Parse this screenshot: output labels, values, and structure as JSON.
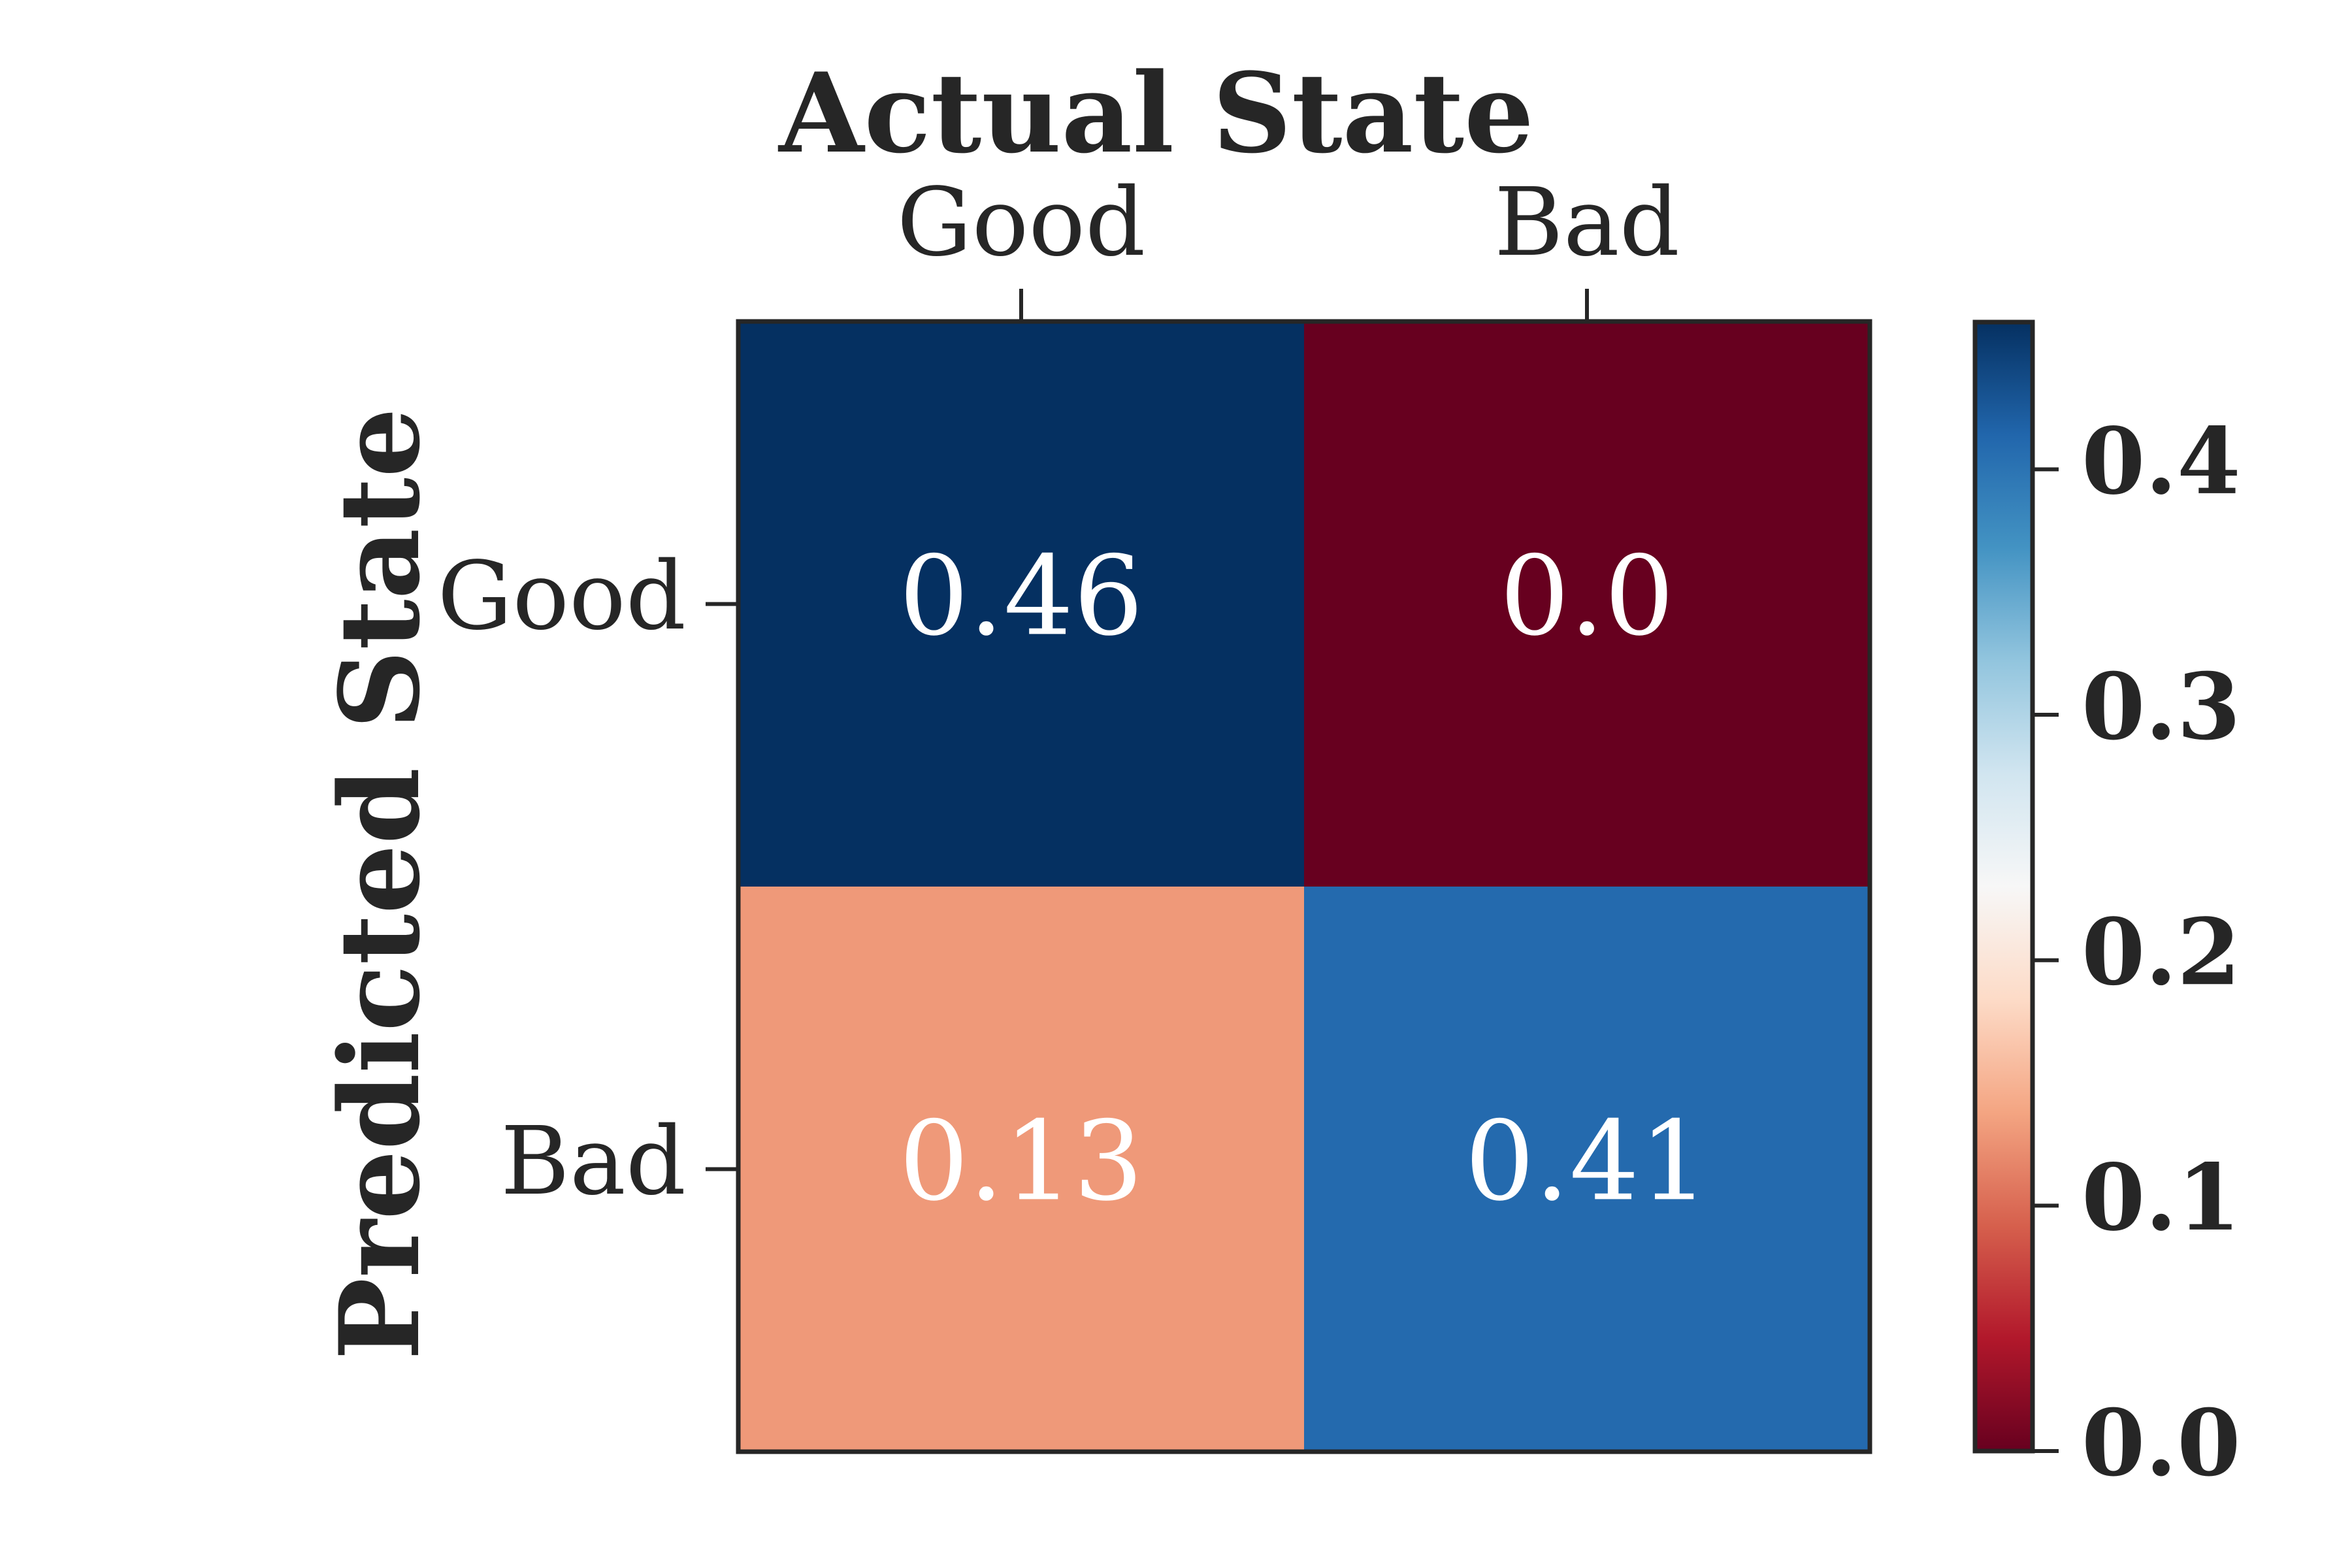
{
  "chart_data": {
    "type": "heatmap",
    "title": "",
    "xlabel": "Actual State",
    "ylabel": "Predicted State",
    "x_categories": [
      "Good",
      "Bad"
    ],
    "y_categories": [
      "Good",
      "Bad"
    ],
    "values": [
      [
        0.46,
        0.0
      ],
      [
        0.13,
        0.41
      ]
    ],
    "cell_labels": [
      [
        "0.46",
        "0.0"
      ],
      [
        "0.13",
        "0.41"
      ]
    ],
    "x_axis_position": "top",
    "colorbar": {
      "colormap": "RdBu",
      "range": [
        0.0,
        0.46
      ],
      "ticks": [
        0.0,
        0.1,
        0.2,
        0.3,
        0.4
      ],
      "tick_labels": [
        "0.0",
        "0.1",
        "0.2",
        "0.3",
        "0.4"
      ],
      "position": "right"
    },
    "grid": false,
    "colors": {
      "text_dark": "#262626",
      "cell_text": "#ffffff",
      "colormap_stops": [
        "#67001f",
        "#b2182b",
        "#d6604d",
        "#f4a582",
        "#fddbc7",
        "#f7f7f7",
        "#d1e5f0",
        "#92c5de",
        "#4393c3",
        "#2166ac",
        "#053061"
      ]
    }
  }
}
